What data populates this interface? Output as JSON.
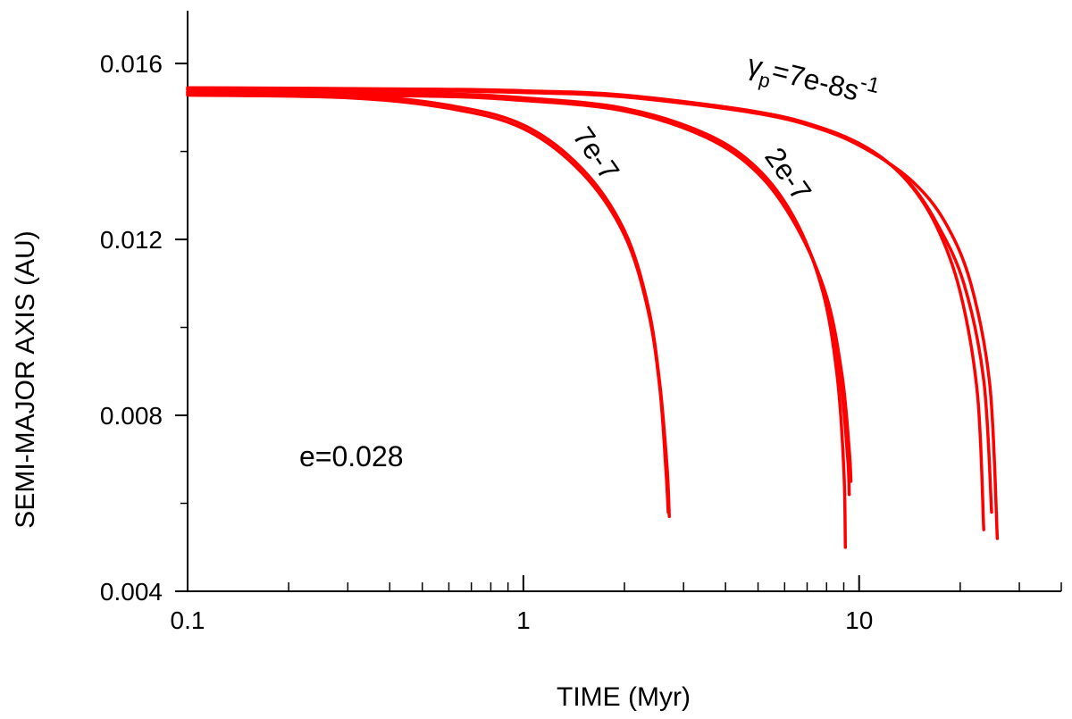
{
  "chart_data": {
    "type": "line",
    "title": "",
    "xlabel": "TIME (Myr)",
    "ylabel": "SEMI-MAJOR AXIS (AU)",
    "xscale": "log",
    "xlim": [
      0.1,
      40
    ],
    "ylim": [
      0.004,
      0.0172
    ],
    "x_ticks": [
      0.1,
      1,
      10
    ],
    "x_tick_labels": [
      "0.1",
      "1",
      "10"
    ],
    "y_ticks": [
      0.004,
      0.008,
      0.012,
      0.016
    ],
    "y_tick_labels": [
      "0.004",
      "0.008",
      "0.012",
      "0.016"
    ],
    "grid": false,
    "series_color": "#ff0000",
    "series": [
      {
        "name": "7e-7 a",
        "x": [
          0.1,
          0.3,
          0.6,
          1.0,
          1.5,
          2.0,
          2.35,
          2.55,
          2.68,
          2.72
        ],
        "y": [
          0.01535,
          0.01528,
          0.01505,
          0.0146,
          0.0136,
          0.0122,
          0.0105,
          0.0087,
          0.0068,
          0.0057
        ]
      },
      {
        "name": "7e-7 b",
        "x": [
          0.1,
          0.3,
          0.6,
          1.0,
          1.5,
          2.0,
          2.35,
          2.55,
          2.66,
          2.7
        ],
        "y": [
          0.01528,
          0.01522,
          0.01498,
          0.01452,
          0.0135,
          0.0121,
          0.0104,
          0.0086,
          0.0067,
          0.0058
        ]
      },
      {
        "name": "2e-7 a",
        "x": [
          0.1,
          0.5,
          1.0,
          2.0,
          3.5,
          5.0,
          6.5,
          7.8,
          8.6,
          9.0,
          9.1
        ],
        "y": [
          0.01535,
          0.01532,
          0.01522,
          0.01498,
          0.0144,
          0.0136,
          0.0124,
          0.0108,
          0.0089,
          0.0068,
          0.005
        ]
      },
      {
        "name": "2e-7 b",
        "x": [
          0.1,
          0.5,
          1.0,
          2.0,
          3.5,
          5.0,
          6.5,
          7.9,
          8.8,
          9.25,
          9.35
        ],
        "y": [
          0.01532,
          0.01528,
          0.01518,
          0.01494,
          0.01436,
          0.01356,
          0.01236,
          0.01075,
          0.0088,
          0.007,
          0.0062
        ]
      },
      {
        "name": "2e-7 c",
        "x": [
          0.1,
          0.5,
          1.0,
          2.0,
          3.5,
          5.0,
          6.5,
          8.0,
          8.9,
          9.35,
          9.45
        ],
        "y": [
          0.0153,
          0.01526,
          0.01516,
          0.01492,
          0.01432,
          0.0135,
          0.0123,
          0.0107,
          0.0089,
          0.0072,
          0.0065
        ]
      },
      {
        "name": "7e-8 a",
        "x": [
          0.1,
          0.5,
          1.0,
          2.0,
          5.0,
          8.0,
          11.0,
          14.0,
          17.0,
          20.0,
          22.5,
          23.5
        ],
        "y": [
          0.01545,
          0.01542,
          0.01538,
          0.01528,
          0.0149,
          0.0145,
          0.014,
          0.0133,
          0.0123,
          0.0108,
          0.0085,
          0.0054
        ]
      },
      {
        "name": "7e-8 b",
        "x": [
          0.1,
          0.5,
          1.0,
          2.0,
          5.0,
          8.0,
          11.0,
          14.0,
          17.0,
          20.5,
          23.5,
          24.8
        ],
        "y": [
          0.01542,
          0.0154,
          0.01536,
          0.01526,
          0.01488,
          0.01448,
          0.01398,
          0.01332,
          0.01238,
          0.011,
          0.0088,
          0.0058
        ]
      },
      {
        "name": "7e-8 c",
        "x": [
          0.1,
          0.5,
          1.0,
          2.0,
          5.0,
          8.0,
          11.0,
          14.5,
          18.0,
          21.5,
          24.5,
          25.8
        ],
        "y": [
          0.0154,
          0.01538,
          0.01534,
          0.01524,
          0.01486,
          0.01446,
          0.01396,
          0.0133,
          0.0124,
          0.011,
          0.0087,
          0.0052
        ]
      }
    ],
    "annotations": [
      {
        "name": "gamma-label",
        "symbol": "γ",
        "subscript": "p",
        "main": "=7e-8s",
        "superscript": "-1"
      },
      {
        "name": "label-7e-7",
        "text": "7e-7"
      },
      {
        "name": "label-2e-7",
        "text": "2e-7"
      },
      {
        "name": "eccentricity-label",
        "text": "e=0.028"
      }
    ]
  }
}
